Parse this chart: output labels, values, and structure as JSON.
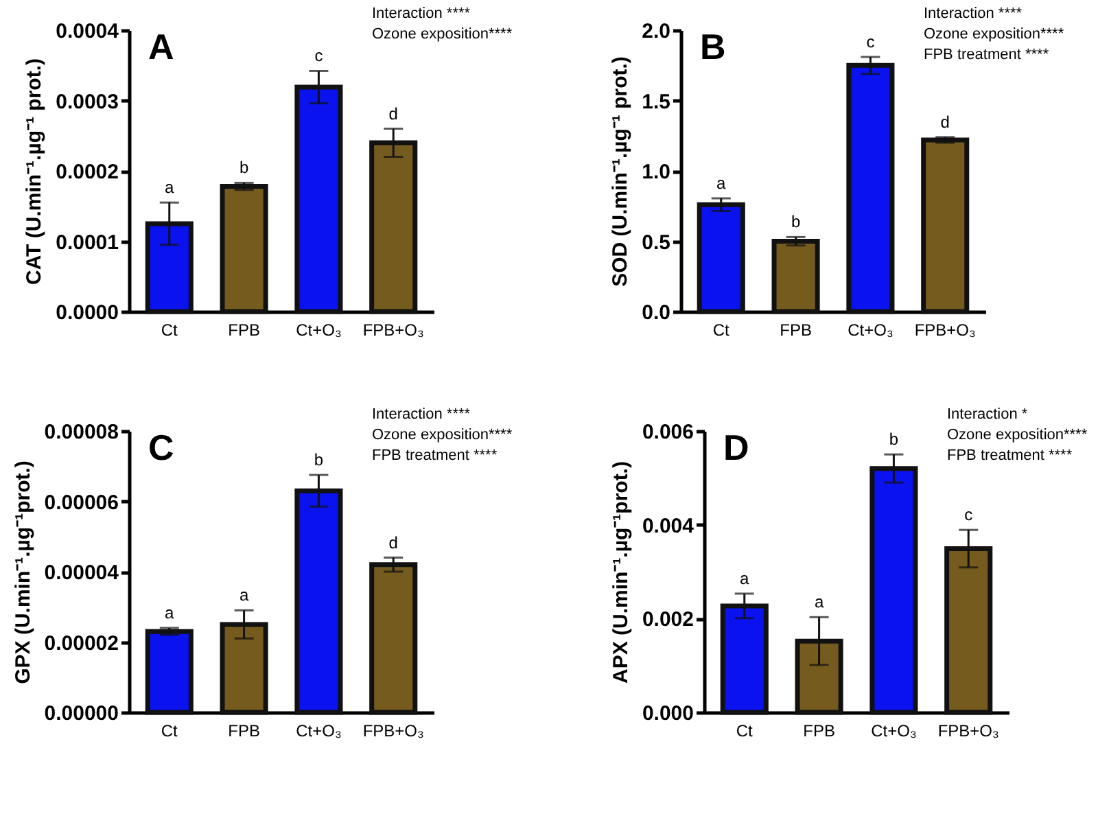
{
  "chart_data": [
    {
      "type": "bar",
      "title": "A",
      "ylabel": "CAT (U.min⁻¹.µg⁻¹ prot.)",
      "categories": [
        "Ct",
        "FPB",
        "Ct+O₃",
        "FPB+O₃"
      ],
      "values": [
        0.000125,
        0.000178,
        0.000319,
        0.00024
      ],
      "errors": [
        3e-05,
        5e-06,
        2.3e-05,
        2e-05
      ],
      "colors": [
        "#0a12f0",
        "#755c1e",
        "#0a12f0",
        "#755c1e"
      ],
      "ylim": [
        0,
        0.0004
      ],
      "yticks": [
        {
          "value": 0,
          "label": "0.0000"
        },
        {
          "value": 0.0001,
          "label": "0.0001"
        },
        {
          "value": 0.0002,
          "label": "0.0002"
        },
        {
          "value": 0.0003,
          "label": "0.0003"
        },
        {
          "value": 0.0004,
          "label": "0.0004"
        }
      ],
      "grid": false,
      "legend": false,
      "annotations": [
        "Interaction ****",
        "Ozone exposition****",
        {
          "text": "a",
          "x": "Ct",
          "y": 0.000125
        },
        {
          "text": "b",
          "x": "FPB",
          "y": 0.000178
        },
        {
          "text": "c",
          "x": "Ct+O₃",
          "y": 0.000319
        },
        {
          "text": "d",
          "x": "FPB+O₃",
          "y": 0.00024
        }
      ]
    },
    {
      "type": "bar",
      "title": "B",
      "ylabel": "SOD (U.min⁻¹.µg⁻¹ prot.)",
      "categories": [
        "Ct",
        "FPB",
        "Ct+O₃",
        "FPB+O₃"
      ],
      "values": [
        0.76,
        0.5,
        1.75,
        1.22
      ],
      "errors": [
        0.045,
        0.03,
        0.06,
        0.02
      ],
      "colors": [
        "#0a12f0",
        "#755c1e",
        "#0a12f0",
        "#755c1e"
      ],
      "ylim": [
        0,
        2
      ],
      "yticks": [
        {
          "value": 0,
          "label": "0.0"
        },
        {
          "value": 0.5,
          "label": "0.5"
        },
        {
          "value": 1,
          "label": "1.0"
        },
        {
          "value": 1.5,
          "label": "1.5"
        },
        {
          "value": 2,
          "label": "2.0"
        }
      ],
      "grid": false,
      "legend": false,
      "annotations": [
        "Interaction ****",
        "Ozone exposition****",
        "FPB treatment ****",
        {
          "text": "a",
          "x": "Ct",
          "y": 0.76
        },
        {
          "text": "b",
          "x": "FPB",
          "y": 0.5
        },
        {
          "text": "c",
          "x": "Ct+O₃",
          "y": 1.75
        },
        {
          "text": "d",
          "x": "FPB+O₃",
          "y": 1.22
        }
      ]
    },
    {
      "type": "bar",
      "title": "C",
      "ylabel": "GPX (U.min⁻¹.µg⁻¹prot.)",
      "categories": [
        "Ct",
        "FPB",
        "Ct+O₃",
        "FPB+O₃"
      ],
      "values": [
        2.3e-05,
        2.5e-05,
        6.3e-05,
        4.2e-05
      ],
      "errors": [
        1e-06,
        4e-06,
        4.5e-06,
        2e-06
      ],
      "colors": [
        "#0a12f0",
        "#755c1e",
        "#0a12f0",
        "#755c1e"
      ],
      "ylim": [
        0,
        8e-05
      ],
      "yticks": [
        {
          "value": 0,
          "label": "0.00000"
        },
        {
          "value": 2e-05,
          "label": "0.00002"
        },
        {
          "value": 4e-05,
          "label": "0.00004"
        },
        {
          "value": 6e-05,
          "label": "0.00006"
        },
        {
          "value": 8e-05,
          "label": "0.00008"
        }
      ],
      "grid": false,
      "legend": false,
      "annotations": [
        "Interaction ****",
        "Ozone exposition****",
        "FPB treatment ****",
        {
          "text": "a",
          "x": "Ct",
          "y": 2.3e-05
        },
        {
          "text": "a",
          "x": "FPB",
          "y": 2.5e-05
        },
        {
          "text": "b",
          "x": "Ct+O₃",
          "y": 6.3e-05
        },
        {
          "text": "d",
          "x": "FPB+O₃",
          "y": 4.2e-05
        }
      ]
    },
    {
      "type": "bar",
      "title": "D",
      "ylabel": "APX (U.min⁻¹.µg⁻¹prot.)",
      "categories": [
        "Ct",
        "FPB",
        "Ct+O₃",
        "FPB+O₃"
      ],
      "values": [
        0.00227,
        0.00152,
        0.0052,
        0.00349
      ],
      "errors": [
        0.00026,
        0.00051,
        0.0003,
        0.0004
      ],
      "colors": [
        "#0a12f0",
        "#755c1e",
        "#0a12f0",
        "#755c1e"
      ],
      "ylim": [
        0,
        0.006
      ],
      "yticks": [
        {
          "value": 0,
          "label": "0.000"
        },
        {
          "value": 0.002,
          "label": "0.002"
        },
        {
          "value": 0.004,
          "label": "0.004"
        },
        {
          "value": 0.006,
          "label": "0.006"
        }
      ],
      "grid": false,
      "legend": false,
      "annotations": [
        "Interaction *",
        "Ozone exposition****",
        "FPB treatment ****",
        {
          "text": "a",
          "x": "Ct",
          "y": 0.00227
        },
        {
          "text": "a",
          "x": "FPB",
          "y": 0.00152
        },
        {
          "text": "b",
          "x": "Ct+O₃",
          "y": 0.0052
        },
        {
          "text": "c",
          "x": "FPB+O₃",
          "y": 0.00349
        }
      ]
    }
  ]
}
